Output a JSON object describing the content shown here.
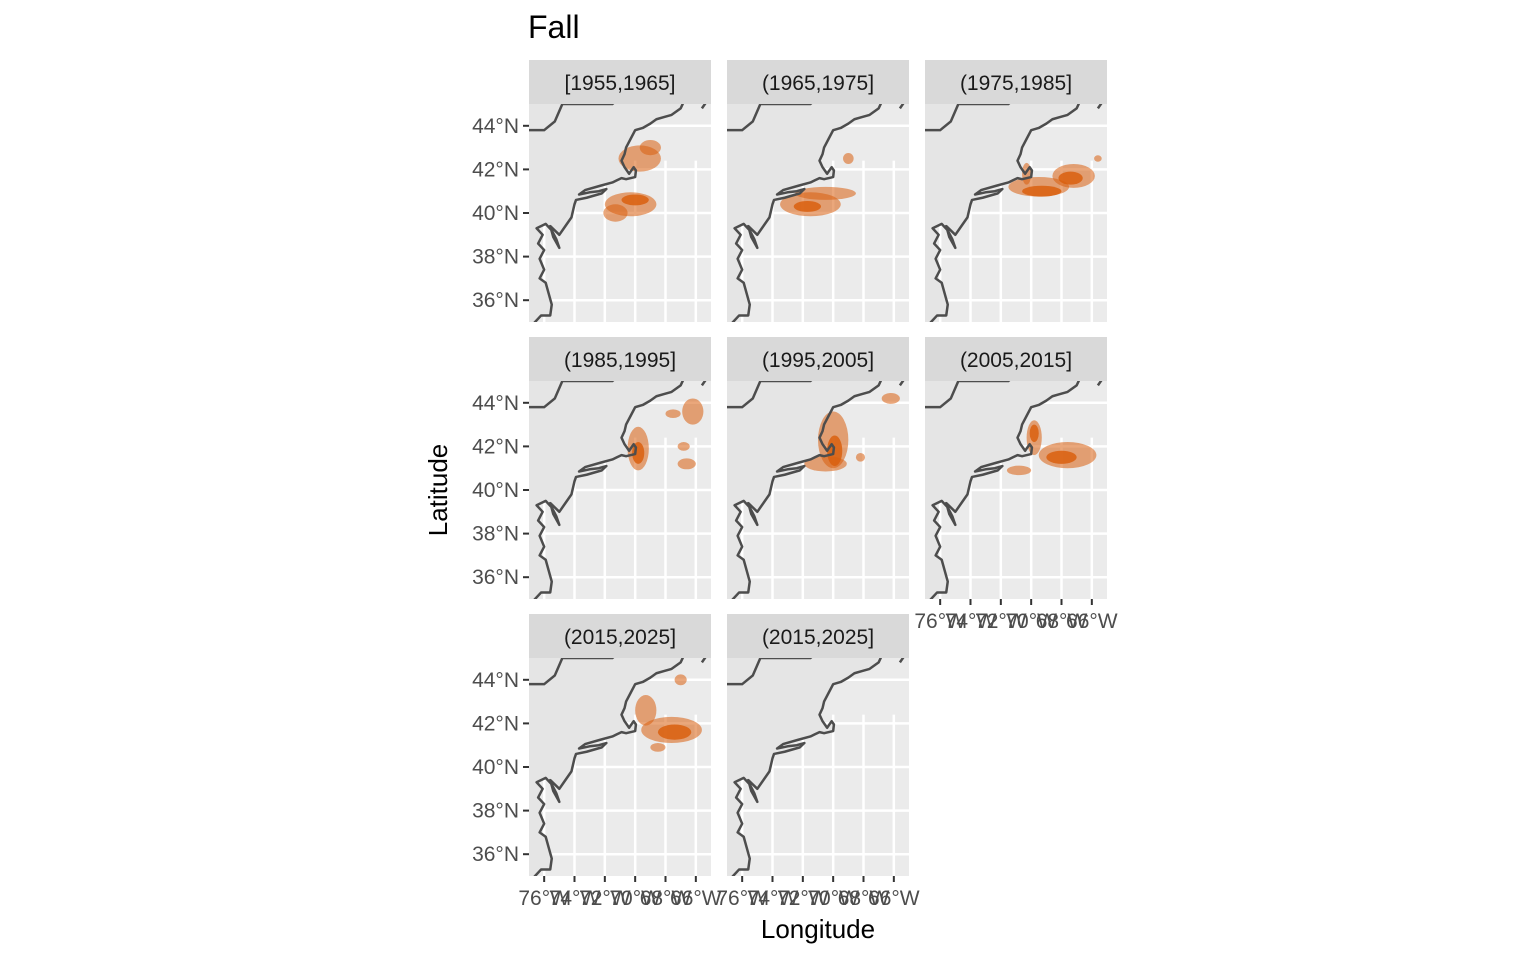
{
  "chart_data": {
    "type": "map",
    "title": "Fall",
    "xlabel": "Longitude",
    "ylabel": "Latitude",
    "xlim": [
      -77,
      -65
    ],
    "ylim": [
      35,
      45
    ],
    "x_ticks": [
      -76,
      -74,
      -72,
      -70,
      -68,
      -66
    ],
    "x_tick_labels": [
      "76°W",
      "74°W",
      "72°W",
      "70°W",
      "68°W",
      "66°W"
    ],
    "y_ticks": [
      36,
      38,
      40,
      42,
      44
    ],
    "y_tick_labels": [
      "36°N",
      "38°N",
      "40°N",
      "42°N",
      "44°N"
    ],
    "grid": true,
    "fill_color": "#d95f0e",
    "coast_color": "#4d4d4d",
    "panel_bg": "#ebebeb",
    "land_color": "#e5e5e5",
    "strip_bg": "#d9d9d9",
    "panels": [
      {
        "label": "[1955,1965]",
        "density_blobs": [
          {
            "lon": -69.7,
            "lat": 42.5,
            "rx": 1.4,
            "ry": 0.6,
            "level": 1
          },
          {
            "lon": -69.0,
            "lat": 43.0,
            "rx": 0.7,
            "ry": 0.35,
            "level": 1
          },
          {
            "lon": -70.3,
            "lat": 40.4,
            "rx": 1.7,
            "ry": 0.55,
            "level": 1
          },
          {
            "lon": -70.0,
            "lat": 40.6,
            "rx": 0.9,
            "ry": 0.25,
            "level": 2
          },
          {
            "lon": -71.3,
            "lat": 40.0,
            "rx": 0.8,
            "ry": 0.4,
            "level": 1
          }
        ]
      },
      {
        "label": "(1965,1975]",
        "density_blobs": [
          {
            "lon": -71.5,
            "lat": 40.4,
            "rx": 2.0,
            "ry": 0.55,
            "level": 1
          },
          {
            "lon": -70.5,
            "lat": 40.9,
            "rx": 2.0,
            "ry": 0.3,
            "level": 1
          },
          {
            "lon": -71.7,
            "lat": 40.3,
            "rx": 0.9,
            "ry": 0.25,
            "level": 2
          },
          {
            "lon": -69.0,
            "lat": 42.5,
            "rx": 0.35,
            "ry": 0.25,
            "level": 1
          }
        ]
      },
      {
        "label": "(1975,1985]",
        "density_blobs": [
          {
            "lon": -69.5,
            "lat": 41.2,
            "rx": 2.0,
            "ry": 0.45,
            "level": 1
          },
          {
            "lon": -67.2,
            "lat": 41.7,
            "rx": 1.4,
            "ry": 0.55,
            "level": 1
          },
          {
            "lon": -69.3,
            "lat": 41.0,
            "rx": 1.3,
            "ry": 0.25,
            "level": 2
          },
          {
            "lon": -67.4,
            "lat": 41.6,
            "rx": 0.8,
            "ry": 0.3,
            "level": 2
          },
          {
            "lon": -70.3,
            "lat": 41.8,
            "rx": 0.3,
            "ry": 0.5,
            "level": 1
          },
          {
            "lon": -65.6,
            "lat": 42.5,
            "rx": 0.25,
            "ry": 0.15,
            "level": 1
          }
        ]
      },
      {
        "label": "(1985,1995]",
        "density_blobs": [
          {
            "lon": -69.8,
            "lat": 41.9,
            "rx": 0.7,
            "ry": 1.0,
            "level": 1
          },
          {
            "lon": -69.8,
            "lat": 41.7,
            "rx": 0.4,
            "ry": 0.5,
            "level": 2
          },
          {
            "lon": -66.2,
            "lat": 43.6,
            "rx": 0.7,
            "ry": 0.6,
            "level": 1
          },
          {
            "lon": -67.5,
            "lat": 43.5,
            "rx": 0.5,
            "ry": 0.2,
            "level": 1
          },
          {
            "lon": -66.8,
            "lat": 42.0,
            "rx": 0.4,
            "ry": 0.2,
            "level": 1
          },
          {
            "lon": -66.6,
            "lat": 41.2,
            "rx": 0.6,
            "ry": 0.25,
            "level": 1
          }
        ]
      },
      {
        "label": "(1995,2005]",
        "density_blobs": [
          {
            "lon": -70.0,
            "lat": 42.3,
            "rx": 1.0,
            "ry": 1.3,
            "level": 1
          },
          {
            "lon": -69.9,
            "lat": 41.8,
            "rx": 0.5,
            "ry": 0.7,
            "level": 2
          },
          {
            "lon": -70.5,
            "lat": 41.2,
            "rx": 1.4,
            "ry": 0.35,
            "level": 1
          },
          {
            "lon": -66.2,
            "lat": 44.2,
            "rx": 0.6,
            "ry": 0.25,
            "level": 1
          },
          {
            "lon": -68.2,
            "lat": 41.5,
            "rx": 0.3,
            "ry": 0.2,
            "level": 1
          }
        ]
      },
      {
        "label": "(2005,2015]",
        "density_blobs": [
          {
            "lon": -69.8,
            "lat": 42.4,
            "rx": 0.5,
            "ry": 0.8,
            "level": 1
          },
          {
            "lon": -69.8,
            "lat": 42.6,
            "rx": 0.3,
            "ry": 0.4,
            "level": 2
          },
          {
            "lon": -67.6,
            "lat": 41.6,
            "rx": 1.9,
            "ry": 0.6,
            "level": 1
          },
          {
            "lon": -68.0,
            "lat": 41.5,
            "rx": 1.0,
            "ry": 0.3,
            "level": 2
          },
          {
            "lon": -70.8,
            "lat": 40.9,
            "rx": 0.8,
            "ry": 0.22,
            "level": 1
          }
        ]
      },
      {
        "label": "(2015,2025]",
        "density_blobs": [
          {
            "lon": -67.6,
            "lat": 41.7,
            "rx": 2.0,
            "ry": 0.6,
            "level": 1
          },
          {
            "lon": -67.4,
            "lat": 41.6,
            "rx": 1.1,
            "ry": 0.35,
            "level": 2
          },
          {
            "lon": -69.3,
            "lat": 42.6,
            "rx": 0.7,
            "ry": 0.7,
            "level": 1
          },
          {
            "lon": -67.0,
            "lat": 44.0,
            "rx": 0.4,
            "ry": 0.25,
            "level": 1
          },
          {
            "lon": -68.5,
            "lat": 40.9,
            "rx": 0.5,
            "ry": 0.2,
            "level": 1
          }
        ]
      }
    ],
    "panels_extra": [
      {
        "label": "(2015,2025]"
      }
    ]
  }
}
